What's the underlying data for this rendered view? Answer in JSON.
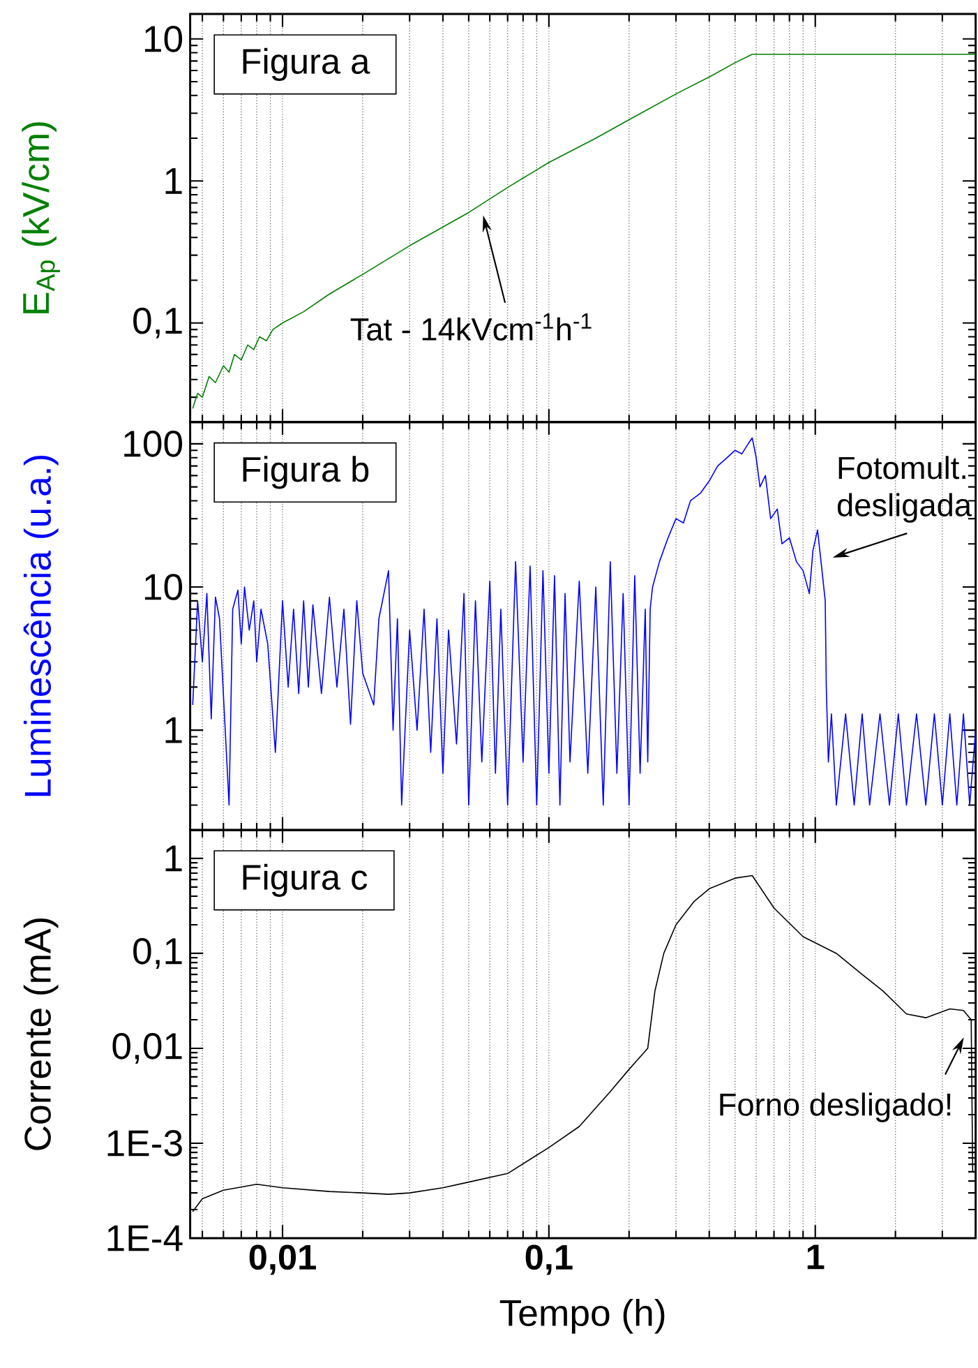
{
  "chart_data": [
    {
      "type": "line",
      "ylabel": "E$_{Ap}$ (kV/cm)",
      "log": "xy",
      "grid": "x",
      "tick_labels": "y",
      "xlim": [
        0.0045,
        4
      ],
      "ylim": [
        0.02,
        15
      ],
      "yticks": [
        {
          "value": 0.1,
          "label": "0,1"
        },
        1,
        10
      ],
      "series": [
        {
          "color": "#008000",
          "x": [
            0.0046,
            0.0048,
            0.005,
            0.0053,
            0.0056,
            0.006,
            0.0063,
            0.0066,
            0.007,
            0.0074,
            0.0078,
            0.0082,
            0.0087,
            0.0092,
            0.01,
            0.012,
            0.015,
            0.02,
            0.03,
            0.05,
            0.07,
            0.1,
            0.15,
            0.2,
            0.3,
            0.4,
            0.5,
            0.58,
            1,
            2,
            4
          ],
          "values": [
            0.025,
            0.032,
            0.03,
            0.042,
            0.038,
            0.05,
            0.045,
            0.06,
            0.055,
            0.07,
            0.065,
            0.08,
            0.075,
            0.09,
            0.1,
            0.12,
            0.16,
            0.22,
            0.35,
            0.6,
            0.9,
            1.35,
            2,
            2.7,
            4.1,
            5.4,
            6.8,
            7.8,
            7.8,
            7.8,
            7.8
          ]
        }
      ],
      "annotations": [
        "Figura a",
        "Tat - 14kVcm$^{-1}$h$^{-1}$"
      ]
    },
    {
      "type": "line",
      "ylabel": "Luminescência (u.a.)",
      "log": "xy",
      "grid": "x",
      "tick_labels": "y",
      "xlim": [
        0.0045,
        4
      ],
      "ylim": [
        0.2,
        142
      ],
      "yticks": [
        1,
        10,
        100
      ],
      "series": [
        {
          "color": "#0000ff",
          "x": [
            0.0046,
            0.0048,
            0.005,
            0.0052,
            0.0054,
            0.0056,
            0.0058,
            0.0063,
            0.0065,
            0.0068,
            0.007,
            0.0072,
            0.0075,
            0.0078,
            0.008,
            0.0083,
            0.0088,
            0.0094,
            0.01,
            0.0105,
            0.011,
            0.0115,
            0.012,
            0.0125,
            0.013,
            0.014,
            0.015,
            0.016,
            0.017,
            0.018,
            0.019,
            0.02,
            0.022,
            0.023,
            0.025,
            0.026,
            0.027,
            0.028,
            0.03,
            0.032,
            0.034,
            0.036,
            0.038,
            0.04,
            0.042,
            0.045,
            0.048,
            0.05,
            0.053,
            0.056,
            0.06,
            0.063,
            0.066,
            0.07,
            0.075,
            0.08,
            0.085,
            0.09,
            0.095,
            0.1,
            0.105,
            0.11,
            0.115,
            0.12,
            0.13,
            0.14,
            0.15,
            0.16,
            0.17,
            0.18,
            0.19,
            0.2,
            0.21,
            0.22,
            0.23,
            0.235,
            0.24,
            0.245,
            0.26,
            0.28,
            0.3,
            0.32,
            0.34,
            0.37,
            0.4,
            0.43,
            0.46,
            0.5,
            0.53,
            0.56,
            0.58,
            0.6,
            0.62,
            0.65,
            0.68,
            0.72,
            0.75,
            0.8,
            0.85,
            0.9,
            0.95,
            0.98,
            1.02,
            1.06,
            1.09,
            1.1,
            1.12,
            1.15,
            1.2,
            1.3,
            1.4,
            1.5,
            1.6,
            1.75,
            1.9,
            2.05,
            2.2,
            2.4,
            2.6,
            2.8,
            3,
            3.2,
            3.4,
            3.6,
            3.8,
            4
          ],
          "values": [
            1.5,
            8,
            3,
            9,
            1.2,
            8.5,
            6,
            0.3,
            7,
            9.5,
            4,
            10,
            5,
            8,
            3,
            7,
            4,
            0.7,
            8,
            2,
            7,
            1.8,
            8,
            2,
            7.5,
            1.8,
            8.5,
            2,
            7,
            1.1,
            8,
            2.5,
            1.5,
            6,
            13,
            1,
            6,
            0.3,
            5,
            1,
            7,
            0.7,
            6,
            0.5,
            5,
            0.8,
            9,
            0.3,
            8,
            0.6,
            11,
            0.5,
            7,
            0.3,
            15,
            0.6,
            14,
            0.3,
            13,
            0.5,
            12,
            0.3,
            9,
            0.6,
            11,
            0.5,
            10,
            0.3,
            15,
            0.5,
            9,
            0.3,
            12,
            0.5,
            7,
            0.6,
            7,
            10,
            15,
            22,
            30,
            28,
            40,
            45,
            55,
            70,
            78,
            90,
            85,
            100,
            110,
            80,
            50,
            60,
            30,
            35,
            20,
            22,
            15,
            13,
            9,
            18,
            25,
            13,
            8,
            2,
            0.6,
            1.3,
            0.3,
            1.3,
            0.3,
            1.3,
            0.3,
            1.3,
            0.3,
            1.3,
            0.3,
            1.3,
            0.3,
            1.3,
            0.3,
            1.3,
            0.3,
            1.3,
            0.3,
            1
          ]
        }
      ],
      "annotations": [
        "Figura b",
        "Fotomult. desligada"
      ]
    },
    {
      "type": "line",
      "xlabel": "Tempo (h)",
      "ylabel": "Corrente (mA)",
      "log": "xy",
      "grid": "x",
      "xlim": [
        0.0045,
        4
      ],
      "xticks": [
        {
          "value": 0.01,
          "label": "0,01"
        },
        {
          "value": 0.1,
          "label": "0,1"
        },
        1
      ],
      "ylim": [
        0.0001,
        2
      ],
      "yticks": [
        {
          "value": 0.0001,
          "label": "1E-4"
        },
        {
          "value": 0.001,
          "label": "1E-3"
        },
        {
          "value": 0.01,
          "label": "0,01"
        },
        {
          "value": 0.1,
          "label": "0,1"
        },
        1
      ],
      "series": [
        {
          "color": "#000000",
          "x": [
            0.0046,
            0.005,
            0.006,
            0.008,
            0.01,
            0.015,
            0.02,
            0.025,
            0.03,
            0.04,
            0.05,
            0.07,
            0.1,
            0.13,
            0.17,
            0.2,
            0.235,
            0.25,
            0.27,
            0.3,
            0.35,
            0.4,
            0.5,
            0.58,
            0.7,
            0.9,
            1.2,
            1.5,
            1.8,
            2.2,
            2.6,
            3.2,
            3.6,
            3.85,
            3.9
          ],
          "values": [
            0.00019,
            0.00026,
            0.00032,
            0.00037,
            0.00034,
            0.00031,
            0.0003,
            0.00029,
            0.0003,
            0.00034,
            0.00039,
            0.00048,
            0.0009,
            0.0015,
            0.0035,
            0.006,
            0.01,
            0.04,
            0.1,
            0.2,
            0.35,
            0.48,
            0.62,
            0.66,
            0.3,
            0.15,
            0.1,
            0.06,
            0.04,
            0.023,
            0.021,
            0.026,
            0.025,
            0.02,
            0.0005
          ]
        }
      ],
      "annotations": [
        "Figura c",
        "Forno desligado!"
      ]
    }
  ]
}
